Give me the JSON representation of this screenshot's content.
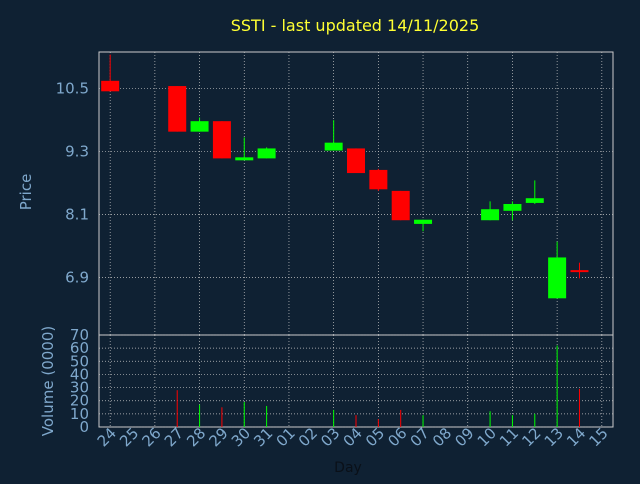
{
  "colors": {
    "background": "#0f2133",
    "title": "#ffff33",
    "axis_text": "#7fa8cc",
    "grid": "#c8c8c8",
    "up": "#00ff00",
    "down": "#ff0000",
    "frame": "#cccccc"
  },
  "chart_data": [
    {
      "type": "candlestick",
      "title": "SSTI - last updated 14/11/2025",
      "ylabel": "Price",
      "xlabel": "",
      "ylim": [
        5.8,
        11.2
      ],
      "yticks": [
        "10.5",
        "9.3",
        "8.1",
        "6.9"
      ],
      "ytick_values": [
        10.5,
        9.3,
        8.1,
        6.9
      ],
      "grid": true,
      "categories": [
        "24",
        "25",
        "26",
        "27",
        "28",
        "29",
        "30",
        "31",
        "01",
        "02",
        "03",
        "04",
        "05",
        "06",
        "07",
        "08",
        "09",
        "10",
        "11",
        "12",
        "13",
        "14",
        "15"
      ],
      "candles": [
        {
          "x": "24",
          "open": 10.65,
          "high": 11.15,
          "low": 10.45,
          "close": 10.45,
          "dir": "down",
          "partial": true
        },
        {
          "x": "27",
          "open": 10.55,
          "high": 10.55,
          "low": 9.68,
          "close": 9.68
        },
        {
          "x": "28",
          "open": 9.68,
          "high": 9.95,
          "low": 9.68,
          "close": 9.88
        },
        {
          "x": "29",
          "open": 9.88,
          "high": 9.88,
          "low": 9.17,
          "close": 9.17
        },
        {
          "x": "30",
          "open": 9.14,
          "high": 9.57,
          "low": 9.14,
          "close": 9.19
        },
        {
          "x": "31",
          "open": 9.17,
          "high": 9.38,
          "low": 9.17,
          "close": 9.36
        },
        {
          "x": "03",
          "open": 9.32,
          "high": 9.9,
          "low": 9.32,
          "close": 9.47
        },
        {
          "x": "04",
          "open": 9.36,
          "high": 9.36,
          "low": 8.89,
          "close": 8.89
        },
        {
          "x": "05",
          "open": 8.95,
          "high": 8.97,
          "low": 8.55,
          "close": 8.58
        },
        {
          "x": "06",
          "open": 8.55,
          "high": 8.55,
          "low": 7.99,
          "close": 7.99
        },
        {
          "x": "07",
          "open": 7.92,
          "high": 8.0,
          "low": 7.78,
          "close": 8.0
        },
        {
          "x": "10",
          "open": 7.99,
          "high": 8.35,
          "low": 7.99,
          "close": 8.2
        },
        {
          "x": "11",
          "open": 8.17,
          "high": 8.35,
          "low": 7.99,
          "close": 8.3
        },
        {
          "x": "12",
          "open": 8.32,
          "high": 8.75,
          "low": 8.3,
          "close": 8.41
        },
        {
          "x": "13",
          "open": 6.5,
          "high": 7.58,
          "low": 6.5,
          "close": 7.28
        },
        {
          "x": "14",
          "open": 7.02,
          "high": 7.18,
          "low": 6.88,
          "close": 7.02,
          "dir": "down",
          "cross": true
        }
      ]
    },
    {
      "type": "bar",
      "ylabel": "Volume (0000)",
      "xlabel": "Day",
      "ylim": [
        0,
        70
      ],
      "yticks": [
        "0",
        "10",
        "20",
        "30",
        "40",
        "50",
        "60",
        "70"
      ],
      "ytick_values": [
        0,
        10,
        20,
        30,
        40,
        50,
        60,
        70
      ],
      "grid": true,
      "categories": [
        "24",
        "25",
        "26",
        "27",
        "28",
        "29",
        "30",
        "31",
        "01",
        "02",
        "03",
        "04",
        "05",
        "06",
        "07",
        "08",
        "09",
        "10",
        "11",
        "12",
        "13",
        "14",
        "15"
      ],
      "bars": [
        {
          "x": "27",
          "value": 28,
          "dir": "down"
        },
        {
          "x": "28",
          "value": 17,
          "dir": "up"
        },
        {
          "x": "29",
          "value": 15,
          "dir": "down"
        },
        {
          "x": "30",
          "value": 19,
          "dir": "up"
        },
        {
          "x": "31",
          "value": 16,
          "dir": "up"
        },
        {
          "x": "03",
          "value": 13,
          "dir": "up"
        },
        {
          "x": "04",
          "value": 9,
          "dir": "down"
        },
        {
          "x": "05",
          "value": 6,
          "dir": "down"
        },
        {
          "x": "06",
          "value": 13,
          "dir": "down"
        },
        {
          "x": "07",
          "value": 9,
          "dir": "up"
        },
        {
          "x": "10",
          "value": 12,
          "dir": "up"
        },
        {
          "x": "11",
          "value": 9,
          "dir": "up"
        },
        {
          "x": "12",
          "value": 10,
          "dir": "up"
        },
        {
          "x": "13",
          "value": 62,
          "dir": "up"
        },
        {
          "x": "14",
          "value": 29,
          "dir": "down"
        }
      ]
    }
  ]
}
